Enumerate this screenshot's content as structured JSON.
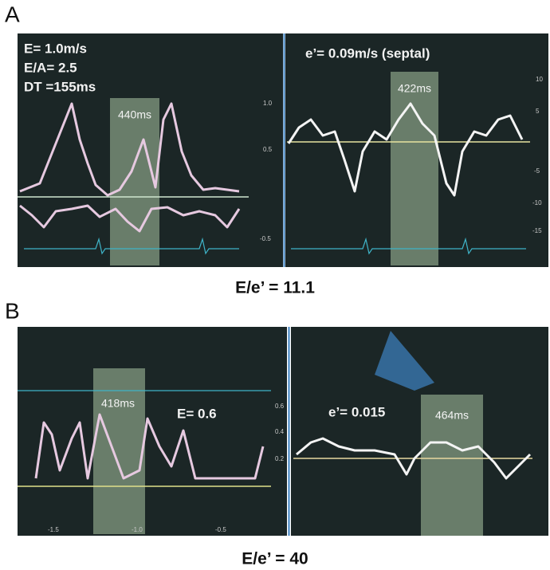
{
  "panels": [
    {
      "label": "A",
      "left": {
        "lines": [
          "E= 1.0m/s",
          "E/A= 2.5",
          "DT =155ms"
        ],
        "interval": "440ms",
        "ticks": [
          "1.0",
          "0.5",
          "-0.5"
        ]
      },
      "right": {
        "lines": [
          "e’= 0.09m/s (septal)"
        ],
        "interval": "422ms",
        "ticks": [
          "10",
          "5",
          "-5",
          "-10",
          "-15"
        ]
      },
      "ratio": "E/e’ = 11.1"
    },
    {
      "label": "B",
      "left": {
        "lines": [
          "E= 0.6"
        ],
        "interval": "418ms",
        "ticks": [
          "0.6",
          "0.4",
          "0.2"
        ],
        "xticks": [
          "-1.5",
          "-1.0",
          "-0.5"
        ]
      },
      "right": {
        "lines": [
          "e’= 0.015"
        ],
        "interval": "464ms"
      },
      "ratio": "E/e’ = 40"
    }
  ]
}
